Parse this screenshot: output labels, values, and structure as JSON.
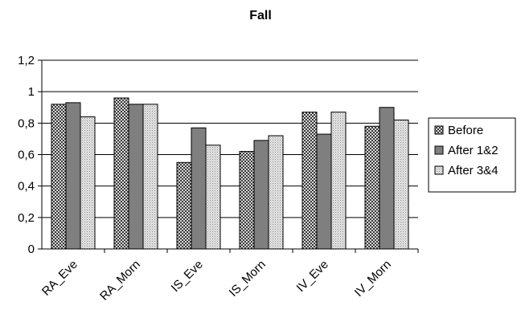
{
  "chart_data": {
    "type": "bar",
    "title": "Fall",
    "xlabel": "",
    "ylabel": "",
    "categories": [
      "RA_Eve",
      "RA_Morn",
      "IS_Eve",
      "IS_Morn",
      "IV_Eve",
      "IV_Morn"
    ],
    "series": [
      {
        "name": "Before",
        "values": [
          0.92,
          0.96,
          0.55,
          0.62,
          0.87,
          0.78
        ],
        "pattern": "checker"
      },
      {
        "name": "After 1&2",
        "values": [
          0.93,
          0.92,
          0.77,
          0.69,
          0.73,
          0.9
        ],
        "pattern": "solid"
      },
      {
        "name": "After 3&4",
        "values": [
          0.84,
          0.92,
          0.66,
          0.72,
          0.87,
          0.82
        ],
        "pattern": "dots"
      }
    ],
    "yticks": [
      "0",
      "0,2",
      "0,4",
      "0,6",
      "0,8",
      "1",
      "1,2"
    ],
    "ylim": [
      0,
      1.2
    ],
    "grid": true,
    "legend": "right"
  },
  "colors": {
    "solid_bar": "#7f7f7f",
    "checker_dark": "#3a3a3a",
    "checker_light": "#d8d8d8",
    "dots_bg": "#e6e6e6",
    "dots_fg": "#8a8a8a",
    "grid": "#000000"
  }
}
